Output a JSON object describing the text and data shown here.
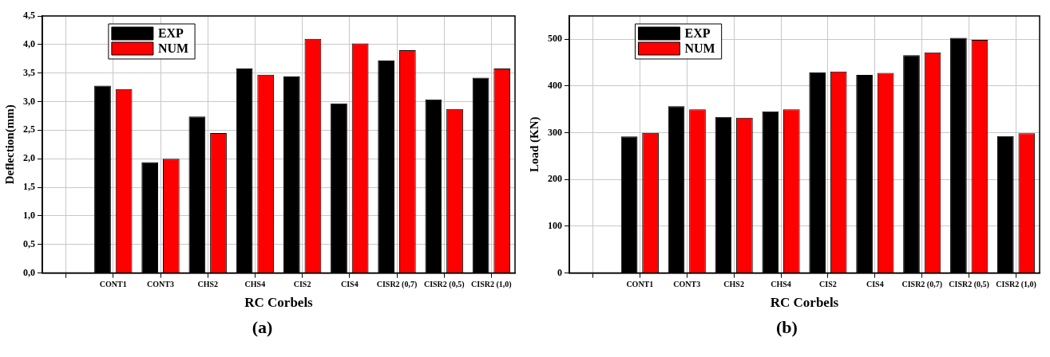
{
  "chart_data": [
    {
      "type": "bar",
      "xlabel": "RC Corbels",
      "ylabel": "Deflection(mm)",
      "annotations": [
        "(a)"
      ],
      "categories": [
        null,
        "CONT1",
        "CONT3",
        "CHS2",
        "CHS4",
        "CIS2",
        "CIS4",
        "CISR2 (0,7)",
        "CISR2 (0,5)",
        "CISR2 (1,0)"
      ],
      "series": [
        {
          "name": "EXP",
          "color": "#000000",
          "values": [
            null,
            3.28,
            1.94,
            2.74,
            3.58,
            3.44,
            2.97,
            3.72,
            3.04,
            3.42
          ]
        },
        {
          "name": "NUM",
          "color": "#ff0000",
          "values": [
            null,
            3.22,
            2.0,
            2.45,
            3.47,
            4.1,
            4.02,
            3.9,
            2.87,
            3.58
          ]
        }
      ],
      "ylim": [
        0,
        4.5
      ],
      "yticks": [
        {
          "value": 0,
          "label": "0,0"
        },
        {
          "value": 0.5,
          "label": "0,5"
        },
        {
          "value": 1,
          "label": "1,0"
        },
        {
          "value": 1.5,
          "label": "1,5"
        },
        {
          "value": 2,
          "label": "2,0"
        },
        {
          "value": 2.5,
          "label": "2,5"
        },
        {
          "value": 3,
          "label": "3,0"
        },
        {
          "value": 3.5,
          "label": "3,5"
        },
        {
          "value": 4,
          "label": "4,0"
        },
        {
          "value": 4.5,
          "label": "4,5"
        }
      ],
      "grid": true,
      "legend": "top left"
    },
    {
      "type": "bar",
      "xlabel": "RC Corbels",
      "ylabel": "Load (KN)",
      "annotations": [
        "(b)"
      ],
      "categories": [
        null,
        "CONT1",
        "CONT3",
        "CHS2",
        "CHS4",
        "CIS2",
        "CIS4",
        "CISR2 (0,7)",
        "CISR2 (0,5)",
        "CISR2 (1,0)"
      ],
      "series": [
        {
          "name": "EXP",
          "color": "#000000",
          "values": [
            null,
            292,
            357,
            334,
            346,
            429,
            424,
            466,
            503,
            293
          ]
        },
        {
          "name": "NUM",
          "color": "#ff0000",
          "values": [
            null,
            300,
            350,
            332,
            350,
            431,
            428,
            472,
            499,
            299
          ]
        }
      ],
      "ylim": [
        0,
        550
      ],
      "yticks": [
        0,
        100,
        200,
        300,
        400,
        500
      ],
      "grid": true,
      "legend": "top left"
    }
  ]
}
